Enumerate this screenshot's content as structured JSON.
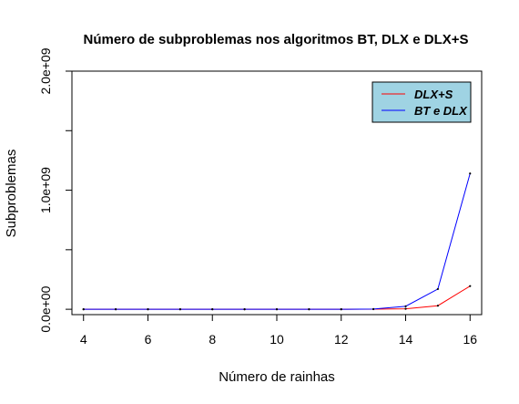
{
  "chart_data": {
    "type": "line",
    "title": "Número de subproblemas nos algoritmos BT, DLX e DLX+S",
    "xlabel": "Número de rainhas",
    "ylabel": "Subproblemas",
    "x": [
      4,
      5,
      6,
      7,
      8,
      9,
      10,
      11,
      12,
      13,
      14,
      15,
      16
    ],
    "xlim": [
      3.64,
      16.36
    ],
    "ylim": [
      -45000000,
      2000000000
    ],
    "x_ticks": [
      4,
      6,
      8,
      10,
      12,
      14,
      16
    ],
    "x_tick_labels": [
      "4",
      "6",
      "8",
      "10",
      "12",
      "14",
      "16"
    ],
    "y_ticks": [
      0,
      500000000,
      1000000000,
      1500000000,
      2000000000
    ],
    "y_tick_labels": [
      "0.0e+00",
      "",
      "1.0e+09",
      "",
      "2.0e+09"
    ],
    "series": [
      {
        "name": "DLX+S",
        "color": "#ff0000",
        "values": [
          0,
          0,
          0,
          0,
          0,
          0,
          0,
          0,
          0,
          500000,
          4000000,
          30000000,
          195000000
        ]
      },
      {
        "name": "BT e DLX",
        "color": "#0000ff",
        "values": [
          0,
          0,
          0,
          0,
          0,
          0,
          0,
          0,
          0,
          2000000,
          25000000,
          170000000,
          1140000000
        ]
      }
    ],
    "legend": {
      "position": "top-right",
      "background": "#9fd3e3",
      "entries": [
        "DLX+S",
        "BT e DLX"
      ]
    },
    "grid": false
  }
}
